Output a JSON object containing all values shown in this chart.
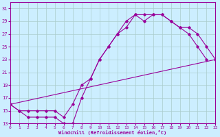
{
  "xlabel": "Windchill (Refroidissement éolien,°C)",
  "background_color": "#cceeff",
  "grid_color": "#aacccc",
  "line_color": "#990099",
  "xlim": [
    0,
    23
  ],
  "ylim": [
    13,
    32
  ],
  "xticks": [
    0,
    1,
    2,
    3,
    4,
    5,
    6,
    7,
    8,
    9,
    10,
    11,
    12,
    13,
    14,
    15,
    16,
    17,
    18,
    19,
    20,
    21,
    22,
    23
  ],
  "yticks": [
    13,
    15,
    17,
    19,
    21,
    23,
    25,
    27,
    29,
    31
  ],
  "line1_x": [
    0,
    1,
    2,
    3,
    4,
    5,
    6,
    7,
    8,
    9,
    10,
    11,
    12,
    13,
    14,
    15,
    16,
    17,
    18,
    19,
    20,
    21,
    22
  ],
  "line1_y": [
    16,
    15,
    14,
    14,
    14,
    14,
    13,
    13,
    17,
    20,
    23,
    25,
    27,
    28,
    30,
    29,
    30,
    30,
    29,
    28,
    27,
    25,
    23
  ],
  "line2_x": [
    0,
    1,
    2,
    3,
    4,
    5,
    6,
    7,
    8,
    9,
    10,
    11,
    12,
    13,
    14,
    15,
    16,
    17,
    18,
    19,
    20,
    21,
    22,
    23
  ],
  "line2_y": [
    16,
    15,
    15,
    15,
    15,
    15,
    14,
    16,
    19,
    20,
    23,
    25,
    27,
    29,
    30,
    30,
    30,
    30,
    29,
    28,
    28,
    27,
    25,
    23
  ],
  "line3_x": [
    0,
    23
  ],
  "line3_y": [
    16,
    23
  ]
}
